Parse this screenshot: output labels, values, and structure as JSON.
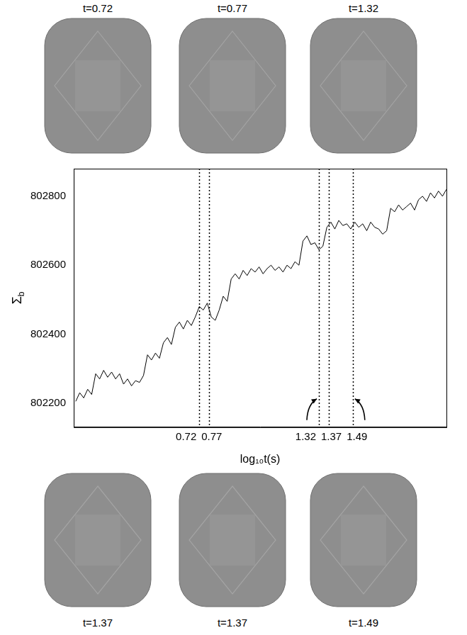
{
  "snapshots_top": [
    "t=0.72",
    "t=0.77",
    "t=1.32"
  ],
  "snapshots_bottom": [
    "t=1.37",
    "t=1.37",
    "t=1.49"
  ],
  "chart_data": {
    "type": "line",
    "x_label": "log₁₀t(s)",
    "y_label": "Σb",
    "color": "#000000",
    "x": [
      0.1,
      0.12,
      0.14,
      0.16,
      0.18,
      0.2,
      0.22,
      0.24,
      0.26,
      0.28,
      0.3,
      0.32,
      0.34,
      0.36,
      0.38,
      0.4,
      0.42,
      0.44,
      0.46,
      0.48,
      0.5,
      0.52,
      0.54,
      0.56,
      0.58,
      0.6,
      0.62,
      0.64,
      0.66,
      0.68,
      0.7,
      0.72,
      0.74,
      0.76,
      0.78,
      0.8,
      0.82,
      0.84,
      0.86,
      0.88,
      0.9,
      0.92,
      0.94,
      0.96,
      0.98,
      1.0,
      1.02,
      1.04,
      1.06,
      1.08,
      1.1,
      1.12,
      1.14,
      1.16,
      1.18,
      1.2,
      1.22,
      1.24,
      1.26,
      1.28,
      1.3,
      1.32,
      1.34,
      1.36,
      1.38,
      1.4,
      1.42,
      1.44,
      1.46,
      1.48,
      1.5,
      1.52,
      1.54,
      1.56,
      1.58,
      1.6,
      1.62,
      1.64,
      1.66,
      1.68,
      1.7,
      1.72,
      1.74,
      1.76,
      1.78,
      1.8,
      1.82,
      1.84,
      1.86,
      1.88,
      1.9,
      1.92,
      1.94,
      1.96
    ],
    "values": [
      802205,
      802230,
      802215,
      802240,
      802225,
      802285,
      802270,
      802295,
      802275,
      802290,
      802270,
      802285,
      802255,
      802270,
      802250,
      802265,
      802260,
      802280,
      802340,
      802325,
      802345,
      802330,
      802375,
      802390,
      802370,
      802420,
      802435,
      802415,
      802440,
      802425,
      802450,
      802480,
      802470,
      802490,
      802450,
      802440,
      802470,
      802510,
      802495,
      802560,
      802575,
      802560,
      802585,
      802570,
      802590,
      802580,
      802595,
      802575,
      802590,
      802600,
      802585,
      802595,
      802580,
      802600,
      802590,
      802610,
      802600,
      802670,
      802685,
      802660,
      802665,
      802645,
      802655,
      802710,
      802725,
      802705,
      802730,
      802715,
      802720,
      802705,
      802725,
      802710,
      802720,
      802700,
      802725,
      802710,
      802705,
      802690,
      802700,
      802765,
      802755,
      802775,
      802760,
      802770,
      802780,
      802760,
      802790,
      802800,
      802785,
      802810,
      802795,
      802815,
      802800,
      802820
    ],
    "xlim": [
      0.09,
      1.96
    ],
    "ylim": [
      802130,
      802880
    ],
    "xticks": [
      0.72,
      0.77,
      1.32,
      1.37,
      1.49
    ],
    "yticks": [
      802200,
      802400,
      802600,
      802800
    ],
    "grid": "x",
    "line_style": "solid"
  }
}
